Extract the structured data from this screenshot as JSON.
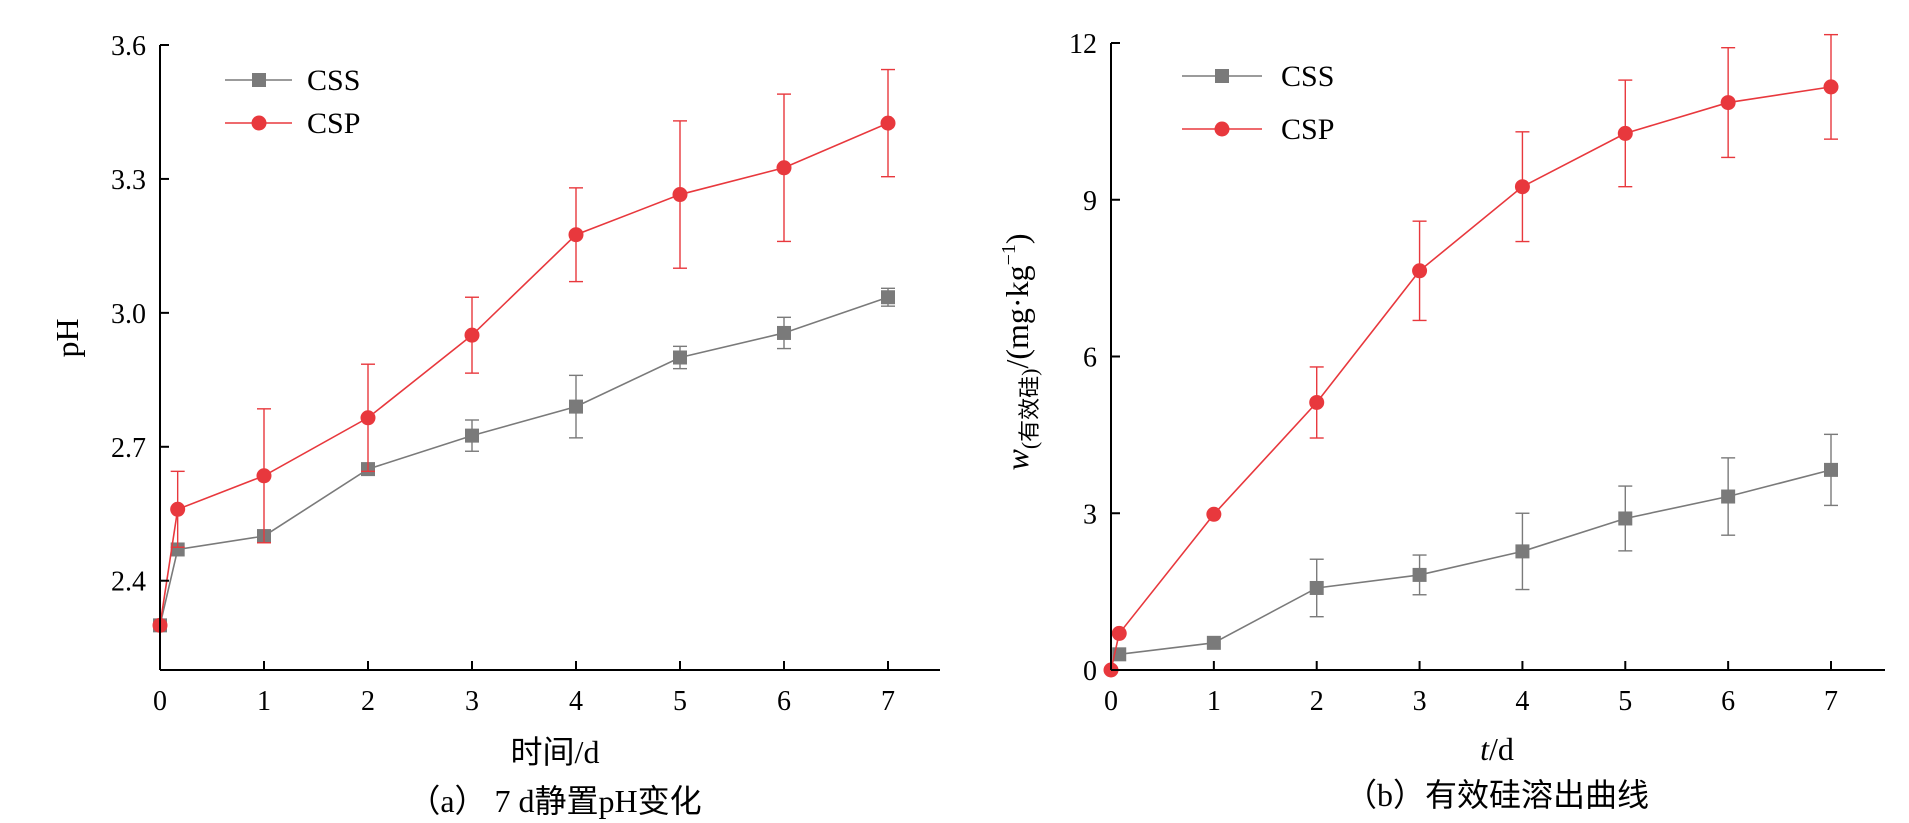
{
  "chart_data": [
    {
      "id": "a",
      "type": "line",
      "caption": "（a） 7 d静置pH变化",
      "xlabel": "时间/d",
      "ylabel": "pH",
      "xlim": [
        0,
        7.5
      ],
      "ylim": [
        2.2,
        3.6
      ],
      "xticks": [
        0,
        1,
        2,
        3,
        4,
        5,
        6,
        7
      ],
      "yticks": [
        2.4,
        2.7,
        3.0,
        3.3,
        3.6
      ],
      "ytick_labels": [
        "2.4",
        "2.7",
        "3.0",
        "3.3",
        "3.6"
      ],
      "legend_position": "top-left",
      "grid": false,
      "series": [
        {
          "name": "CSS",
          "color": "#7a7a7a",
          "marker": "square",
          "points": [
            {
              "x": 0,
              "y": 2.3,
              "err": 0.0
            },
            {
              "x": 0.17,
              "y": 2.47,
              "err": 0.0
            },
            {
              "x": 1,
              "y": 2.5,
              "err": 0.0
            },
            {
              "x": 2,
              "y": 2.65,
              "err": 0.0
            },
            {
              "x": 3,
              "y": 2.725,
              "err": 0.035
            },
            {
              "x": 4,
              "y": 2.79,
              "err": 0.07
            },
            {
              "x": 5,
              "y": 2.9,
              "err": 0.025
            },
            {
              "x": 6,
              "y": 2.955,
              "err": 0.035
            },
            {
              "x": 7,
              "y": 3.035,
              "err": 0.02
            }
          ]
        },
        {
          "name": "CSP",
          "color": "#e8383d",
          "marker": "circle",
          "points": [
            {
              "x": 0,
              "y": 2.3,
              "err": 0.0
            },
            {
              "x": 0.17,
              "y": 2.56,
              "err": 0.085
            },
            {
              "x": 1,
              "y": 2.635,
              "err": 0.15
            },
            {
              "x": 2,
              "y": 2.765,
              "err": 0.12
            },
            {
              "x": 3,
              "y": 2.95,
              "err": 0.085
            },
            {
              "x": 4,
              "y": 3.175,
              "err": 0.105
            },
            {
              "x": 5,
              "y": 3.265,
              "err": 0.165
            },
            {
              "x": 6,
              "y": 3.325,
              "err": 0.165
            },
            {
              "x": 7,
              "y": 3.425,
              "err": 0.12
            }
          ]
        }
      ]
    },
    {
      "id": "b",
      "type": "line",
      "caption": "（b）有效硅溶出曲线",
      "xlabel_italic": "t",
      "xlabel_rest": "/d",
      "ylabel_w": "w",
      "ylabel_sub": "(有效硅)",
      "ylabel_unit": "/(mg·kg",
      "ylabel_sup": "−1",
      "ylabel_close": ")",
      "xlim": [
        0,
        7.5
      ],
      "ylim": [
        0,
        12
      ],
      "xticks": [
        0,
        1,
        2,
        3,
        4,
        5,
        6,
        7
      ],
      "yticks": [
        0,
        3,
        6,
        9,
        12
      ],
      "ytick_labels": [
        "0",
        "3",
        "6",
        "9",
        "12"
      ],
      "legend_position": "top-left",
      "grid": false,
      "series": [
        {
          "name": "CSS",
          "color": "#7a7a7a",
          "marker": "square",
          "points": [
            {
              "x": 0.08,
              "y": 0.3,
              "err": 0.0
            },
            {
              "x": 1,
              "y": 0.52,
              "err": 0.0
            },
            {
              "x": 2,
              "y": 1.57,
              "err": 0.55
            },
            {
              "x": 3,
              "y": 1.82,
              "err": 0.38
            },
            {
              "x": 4,
              "y": 2.27,
              "err": 0.73
            },
            {
              "x": 5,
              "y": 2.9,
              "err": 0.62
            },
            {
              "x": 6,
              "y": 3.32,
              "err": 0.74
            },
            {
              "x": 7,
              "y": 3.83,
              "err": 0.68
            }
          ]
        },
        {
          "name": "CSP",
          "color": "#e8383d",
          "marker": "circle",
          "points": [
            {
              "x": 0,
              "y": 0.0,
              "err": 0.0
            },
            {
              "x": 0.08,
              "y": 0.7,
              "err": 0.0
            },
            {
              "x": 1,
              "y": 2.98,
              "err": 0.0
            },
            {
              "x": 2,
              "y": 5.12,
              "err": 0.68
            },
            {
              "x": 3,
              "y": 7.64,
              "err": 0.95
            },
            {
              "x": 4,
              "y": 9.25,
              "err": 1.05
            },
            {
              "x": 5,
              "y": 10.27,
              "err": 1.02
            },
            {
              "x": 6,
              "y": 10.86,
              "err": 1.05
            },
            {
              "x": 7,
              "y": 11.16,
              "err": 1.0
            }
          ]
        }
      ]
    }
  ]
}
